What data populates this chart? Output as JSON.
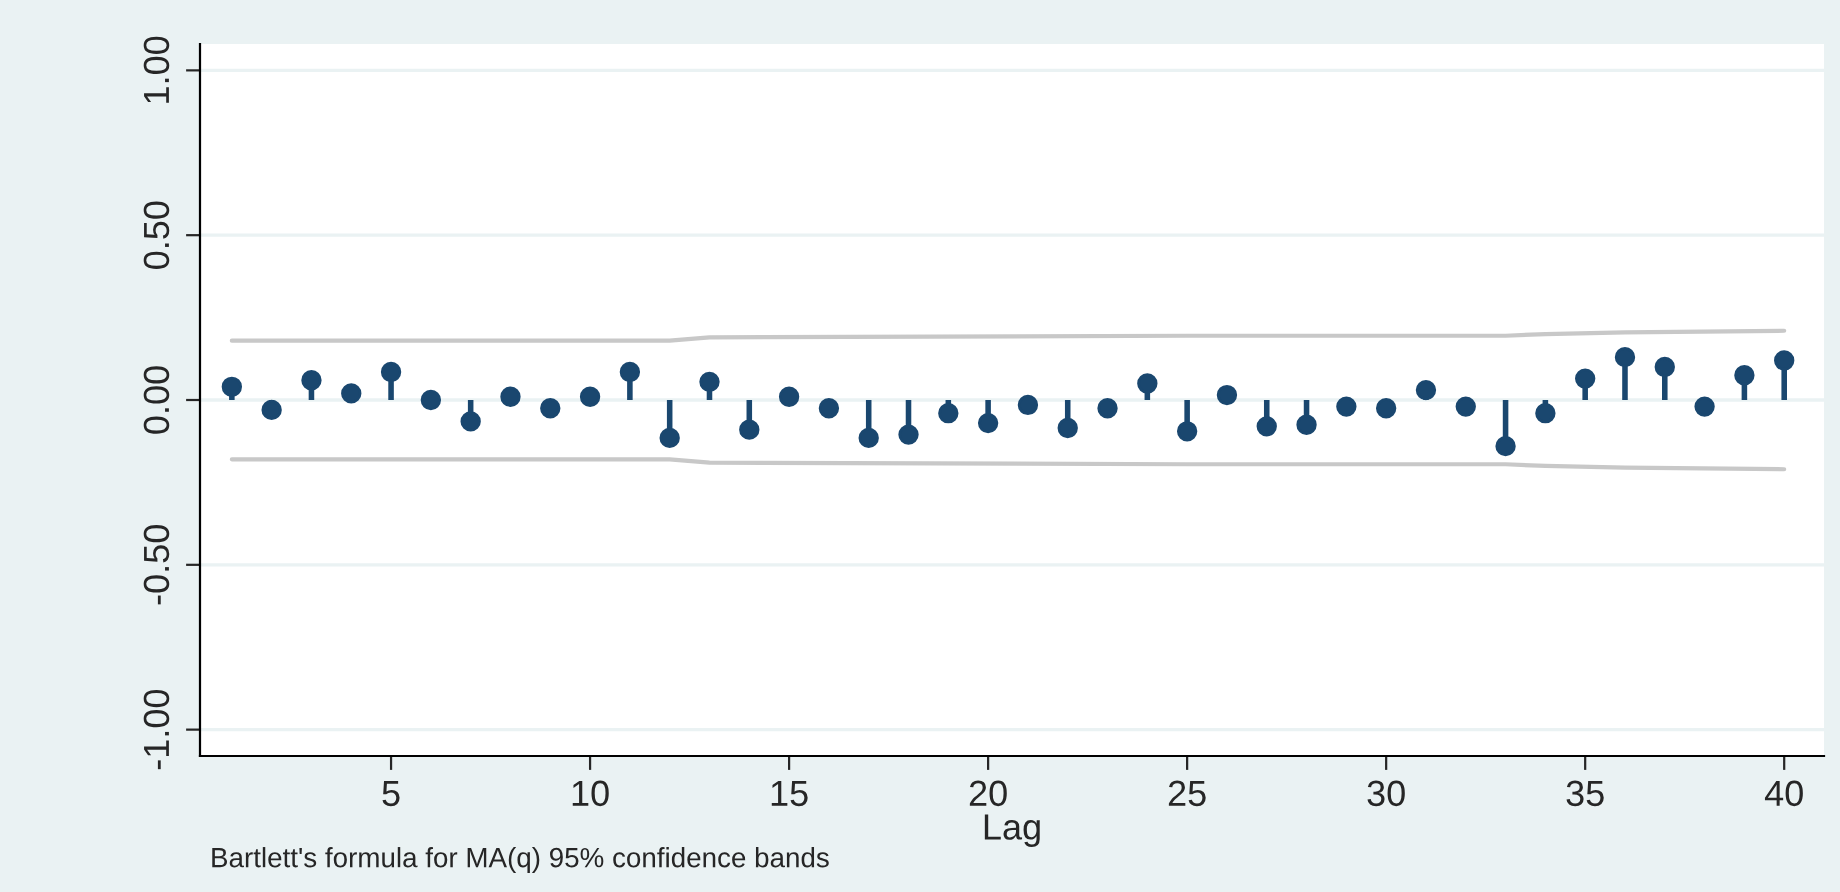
{
  "chart_data": {
    "type": "lollipop",
    "xlabel": "Lag",
    "annotations": [
      "Bartlett's formula for MA(q) 95% confidence bands"
    ],
    "x": [
      1,
      2,
      3,
      4,
      5,
      6,
      7,
      8,
      9,
      10,
      11,
      12,
      13,
      14,
      15,
      16,
      17,
      18,
      19,
      20,
      21,
      22,
      23,
      24,
      25,
      26,
      27,
      28,
      29,
      30,
      31,
      32,
      33,
      34,
      35,
      36,
      37,
      38,
      39,
      40
    ],
    "series": [
      {
        "color": "#1a476f",
        "values": [
          0.04,
          -0.03,
          0.06,
          0.02,
          0.085,
          0.0,
          -0.065,
          0.01,
          -0.025,
          0.01,
          0.085,
          -0.115,
          0.055,
          -0.09,
          0.01,
          -0.025,
          -0.115,
          -0.105,
          -0.04,
          -0.07,
          -0.015,
          -0.085,
          -0.025,
          0.05,
          -0.095,
          0.015,
          -0.08,
          -0.075,
          -0.02,
          -0.025,
          0.03,
          -0.02,
          -0.14,
          -0.04,
          0.065,
          0.13,
          0.1,
          -0.02,
          0.075,
          0.12
        ]
      },
      {
        "type": "line",
        "marker": "none",
        "color": "#c8c8c8",
        "x": [
          1,
          12,
          13,
          25,
          33,
          34,
          36,
          40
        ],
        "values": [
          0.18,
          0.18,
          0.19,
          0.195,
          0.195,
          0.2,
          0.205,
          0.21
        ]
      },
      {
        "type": "line",
        "marker": "none",
        "color": "#c8c8c8",
        "x": [
          1,
          12,
          13,
          25,
          33,
          34,
          36,
          40
        ],
        "values": [
          -0.18,
          -0.18,
          -0.19,
          -0.195,
          -0.195,
          -0.2,
          -0.205,
          -0.21
        ]
      }
    ],
    "xlim": [
      0.2,
      41
    ],
    "xticks": [
      5,
      10,
      15,
      20,
      25,
      30,
      35,
      40
    ],
    "ylim": [
      -1.08,
      1.08
    ],
    "yticks": [
      {
        "value": -1,
        "label": "-1.00"
      },
      {
        "value": -0.5,
        "label": "-0.50"
      },
      {
        "value": 0,
        "label": "0.00"
      },
      {
        "value": 0.5,
        "label": "0.50"
      },
      {
        "value": 1,
        "label": "1.00"
      }
    ],
    "grid": "y",
    "marker": "circle",
    "legend": false
  }
}
